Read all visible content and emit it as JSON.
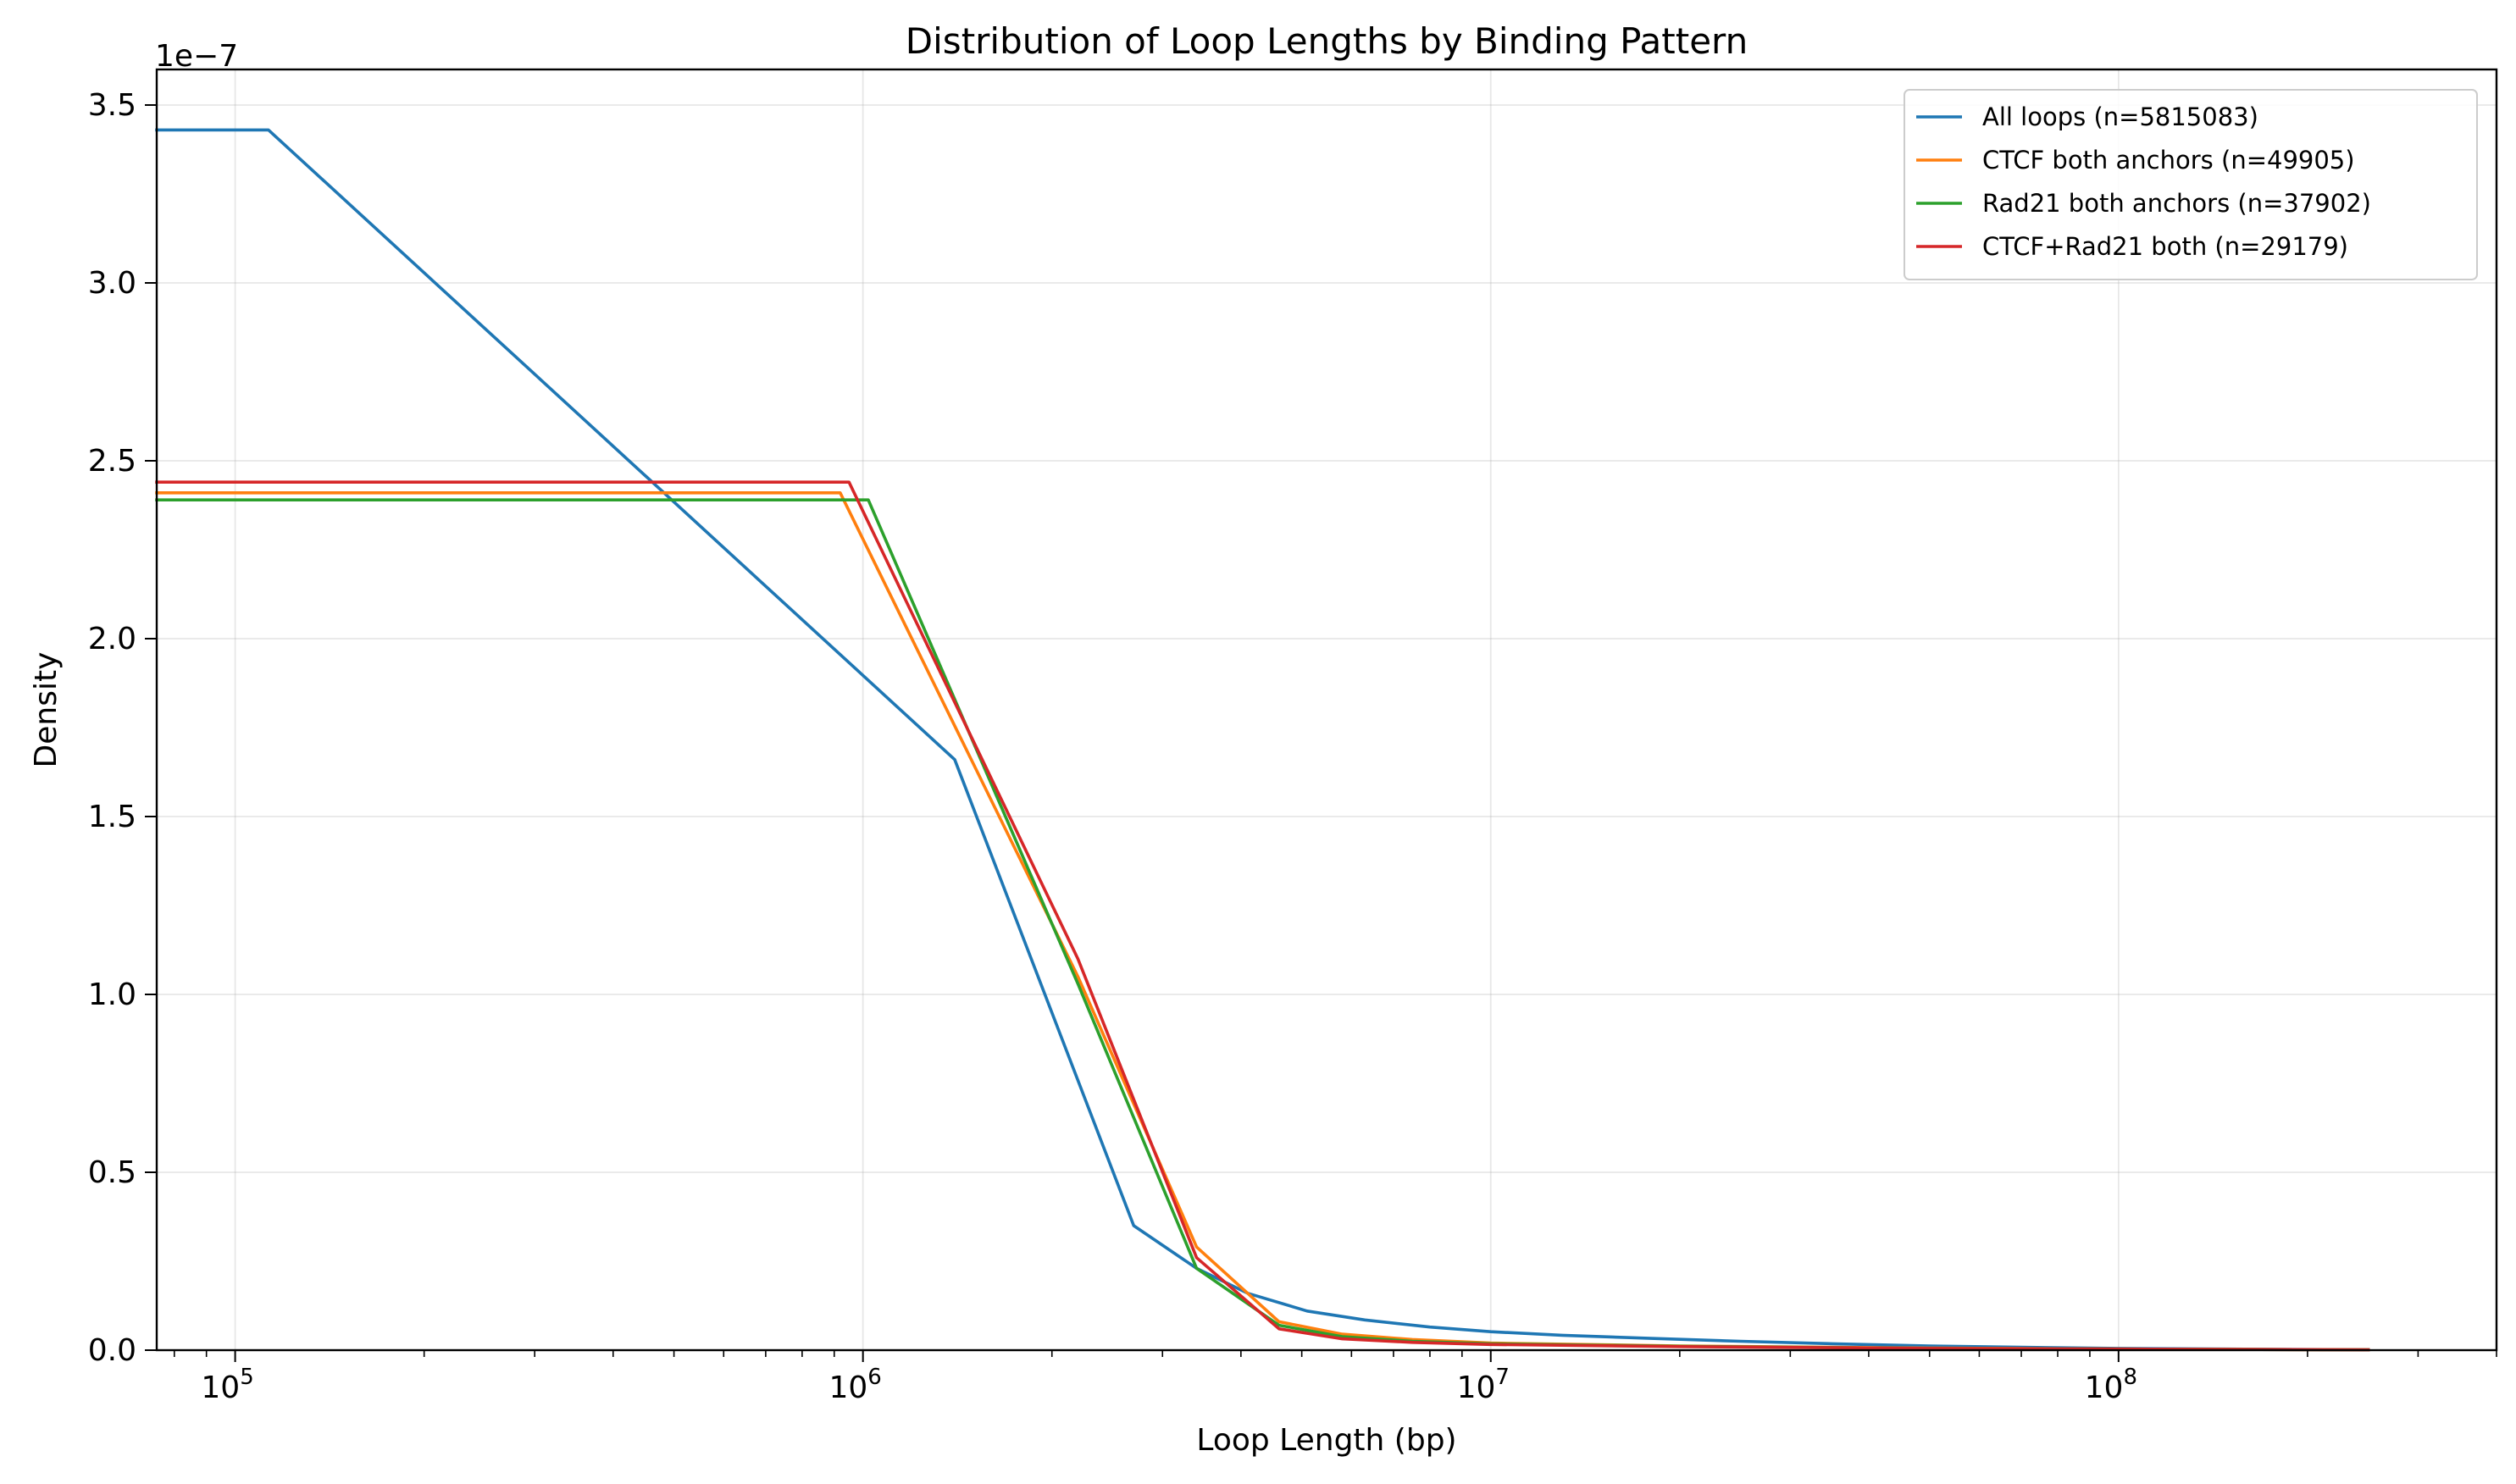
{
  "chart_data": {
    "type": "line",
    "title": "Distribution of Loop Lengths by Binding Pattern",
    "xlabel": "Loop Length (bp)",
    "ylabel": "Density",
    "y_scale_label": "1e−7",
    "x_scale": "log",
    "xlim": [
      75000,
      400000000
    ],
    "ylim": [
      0,
      3.6e-07
    ],
    "x_ticks": [
      {
        "value": 100000,
        "base": "10",
        "exp": "5"
      },
      {
        "value": 1000000,
        "base": "10",
        "exp": "6"
      },
      {
        "value": 10000000,
        "base": "10",
        "exp": "7"
      },
      {
        "value": 100000000,
        "base": "10",
        "exp": "8"
      }
    ],
    "y_ticks": [
      {
        "value": 0,
        "label": "0.0"
      },
      {
        "value": 5e-08,
        "label": "0.5"
      },
      {
        "value": 1e-07,
        "label": "1.0"
      },
      {
        "value": 1.5e-07,
        "label": "1.5"
      },
      {
        "value": 2e-07,
        "label": "2.0"
      },
      {
        "value": 2.5e-07,
        "label": "2.5"
      },
      {
        "value": 3e-07,
        "label": "3.0"
      },
      {
        "value": 3.5e-07,
        "label": "3.5"
      }
    ],
    "grid": true,
    "legend_position": "top-right",
    "series": [
      {
        "name": "All loops (n=5815083)",
        "color": "#1f77b4",
        "points": [
          [
            75000,
            3.43e-07
          ],
          [
            113000,
            3.43e-07
          ],
          [
            1400000,
            1.66e-07
          ],
          [
            2700000,
            3.5e-08
          ],
          [
            3400000,
            2.3e-08
          ],
          [
            4100000,
            1.6e-08
          ],
          [
            5100000,
            1.1e-08
          ],
          [
            6300000,
            8.5e-09
          ],
          [
            8000000,
            6.5e-09
          ],
          [
            10000000,
            5.2e-09
          ],
          [
            13000000,
            4.2e-09
          ],
          [
            18000000,
            3.3e-09
          ],
          [
            25000000,
            2.5e-09
          ],
          [
            35000000,
            1.8e-09
          ],
          [
            50000000,
            1.2e-09
          ],
          [
            70000000,
            8e-10
          ],
          [
            100000000,
            5e-10
          ],
          [
            150000000,
            3e-10
          ],
          [
            250000000,
            1e-10
          ]
        ]
      },
      {
        "name": "CTCF both anchors (n=49905)",
        "color": "#ff7f0e",
        "points": [
          [
            75000,
            2.41e-07
          ],
          [
            920000,
            2.41e-07
          ],
          [
            2200000,
            1.05e-07
          ],
          [
            3400000,
            2.9e-08
          ],
          [
            4600000,
            8e-09
          ],
          [
            5800000,
            4.5e-09
          ],
          [
            7500000,
            3e-09
          ],
          [
            10000000,
            2e-09
          ],
          [
            20000000,
            1.2e-09
          ],
          [
            50000000,
            6e-10
          ],
          [
            100000000,
            3e-10
          ],
          [
            250000000,
            1e-10
          ]
        ]
      },
      {
        "name": "Rad21 both anchors (n=37902)",
        "color": "#2ca02c",
        "points": [
          [
            75000,
            2.39e-07
          ],
          [
            1020000,
            2.39e-07
          ],
          [
            2200000,
            1.03e-07
          ],
          [
            3400000,
            2.3e-08
          ],
          [
            4600000,
            7e-09
          ],
          [
            5800000,
            3.8e-09
          ],
          [
            7500000,
            2.5e-09
          ],
          [
            10000000,
            1.8e-09
          ],
          [
            20000000,
            1.1e-09
          ],
          [
            50000000,
            5e-10
          ],
          [
            100000000,
            3e-10
          ],
          [
            250000000,
            1e-10
          ]
        ]
      },
      {
        "name": "CTCF+Rad21 both (n=29179)",
        "color": "#d62728",
        "points": [
          [
            75000,
            2.44e-07
          ],
          [
            950000,
            2.44e-07
          ],
          [
            2200000,
            1.1e-07
          ],
          [
            3400000,
            2.6e-08
          ],
          [
            4600000,
            6e-09
          ],
          [
            5800000,
            3.2e-09
          ],
          [
            7500000,
            2.2e-09
          ],
          [
            10000000,
            1.6e-09
          ],
          [
            20000000,
            1e-09
          ],
          [
            50000000,
            5e-10
          ],
          [
            100000000,
            3e-10
          ],
          [
            250000000,
            1e-10
          ]
        ]
      }
    ]
  }
}
